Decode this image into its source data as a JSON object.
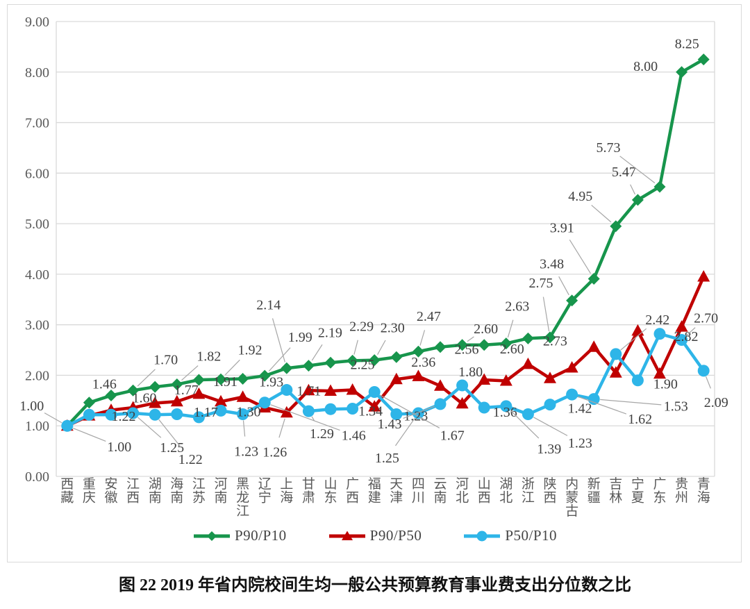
{
  "figure": {
    "caption": "图 22  2019 年省内院校间生均一般公共预算教育事业费支出分位数之比"
  },
  "chart_data": {
    "type": "line",
    "title": "",
    "xlabel": "",
    "ylabel": "",
    "ylim": [
      0,
      9
    ],
    "ytick_step": 1,
    "ytick_labels": [
      "0.00",
      "1.00",
      "2.00",
      "3.00",
      "4.00",
      "5.00",
      "6.00",
      "7.00",
      "8.00",
      "9.00"
    ],
    "grid": true,
    "legend_position": "bottom",
    "categories": [
      "西藏",
      "重庆",
      "安徽",
      "江西",
      "湖南",
      "海南",
      "江苏",
      "河南",
      "黑龙江",
      "辽宁",
      "上海",
      "甘肃",
      "山东",
      "广西",
      "福建",
      "天津",
      "四川",
      "云南",
      "河北",
      "山西",
      "湖北",
      "浙江",
      "陕西",
      "内蒙古",
      "新疆",
      "吉林",
      "宁夏",
      "广东",
      "贵州",
      "青海"
    ],
    "series": [
      {
        "name": "P90/P10",
        "color": "#17954C",
        "marker": "diamond",
        "values": [
          1.0,
          1.46,
          1.6,
          1.7,
          1.77,
          1.82,
          1.91,
          1.92,
          1.93,
          1.99,
          2.14,
          2.19,
          2.25,
          2.29,
          2.3,
          2.36,
          2.47,
          2.56,
          2.6,
          2.6,
          2.63,
          2.73,
          2.75,
          3.48,
          3.91,
          4.95,
          5.47,
          5.73,
          8.0,
          8.25
        ],
        "label_offsets": {
          "0": [
            -51,
            -29,
            1
          ],
          "1": [
            22,
            -27,
            0
          ],
          "2": [
            48,
            3,
            0
          ],
          "3": [
            47,
            -45,
            1
          ],
          "4": [
            45,
            4,
            0
          ],
          "5": [
            46,
            -41,
            1
          ],
          "6": [
            38,
            2,
            0
          ],
          "7": [
            42,
            -43,
            1
          ],
          "8": [
            41,
            4,
            0
          ],
          "9": [
            51,
            -56,
            1
          ],
          "10": [
            -26,
            -92,
            1
          ],
          "11": [
            31,
            -48,
            1
          ],
          "12": [
            46,
            2,
            0
          ],
          "13": [
            13,
            -50,
            1
          ],
          "14": [
            26,
            -47,
            1
          ],
          "15": [
            39,
            7,
            0
          ],
          "16": [
            15,
            -51,
            1
          ],
          "17": [
            38,
            3,
            0
          ],
          "18": [
            34,
            -24,
            1
          ],
          "19": [
            40,
            5,
            0
          ],
          "20": [
            16,
            -54,
            1
          ],
          "21": [
            39,
            3,
            0
          ],
          "22": [
            -13,
            -79,
            1
          ],
          "23": [
            -29,
            -53,
            1
          ],
          "24": [
            -46,
            -74,
            1
          ],
          "25": [
            -51,
            -44,
            1
          ],
          "26": [
            -20,
            -41,
            1
          ],
          "27": [
            -74,
            -57,
            1
          ],
          "28": [
            -52,
            -9,
            0
          ],
          "29": [
            -24,
            -23,
            0
          ]
        }
      },
      {
        "name": "P90/P50",
        "color": "#C00000",
        "marker": "triangle",
        "values": [
          1.0,
          1.2,
          1.31,
          1.36,
          1.45,
          1.48,
          1.63,
          1.48,
          1.57,
          1.36,
          1.26,
          1.7,
          1.69,
          1.71,
          1.38,
          1.92,
          1.98,
          1.79,
          1.44,
          1.91,
          1.89,
          2.22,
          1.94,
          2.15,
          2.56,
          2.05,
          2.88,
          2.03,
          2.96,
          3.95
        ],
        "label_offsets": {
          "10": [
            -17,
            56,
            1
          ]
        }
      },
      {
        "name": "P50/P10",
        "color": "#2EB5E8",
        "marker": "circle",
        "values": [
          1.0,
          1.22,
          1.22,
          1.25,
          1.22,
          1.23,
          1.17,
          1.3,
          1.23,
          1.46,
          1.71,
          1.29,
          1.33,
          1.34,
          1.67,
          1.23,
          1.25,
          1.43,
          1.8,
          1.36,
          1.39,
          1.23,
          1.42,
          1.62,
          1.53,
          2.42,
          1.9,
          2.82,
          2.7,
          2.09
        ],
        "label_offsets": {
          "0": [
            75,
            30,
            1
          ],
          "2": [
            18,
            2,
            0
          ],
          "3": [
            56,
            49,
            1
          ],
          "4": [
            51,
            64,
            1
          ],
          "6": [
            10,
            -8,
            0
          ],
          "7": [
            40,
            1,
            0
          ],
          "8": [
            5,
            53,
            1
          ],
          "9": [
            128,
            47,
            1
          ],
          "10": [
            32,
            1,
            0
          ],
          "11": [
            19,
            32,
            1
          ],
          "13": [
            26,
            3,
            0
          ],
          "14": [
            112,
            62,
            1
          ],
          "15": [
            28,
            2,
            0
          ],
          "16": [
            -45,
            64,
            1
          ],
          "17": [
            -73,
            28,
            1
          ],
          "18": [
            12,
            -20,
            0
          ],
          "19": [
            30,
            6,
            0
          ],
          "20": [
            62,
            61,
            1
          ],
          "21": [
            75,
            41,
            1
          ],
          "22": [
            43,
            5,
            0
          ],
          "23": [
            98,
            35,
            1
          ],
          "24": [
            118,
            10,
            1
          ],
          "25": [
            60,
            -50,
            1
          ],
          "26": [
            40,
            5,
            0
          ],
          "27": [
            38,
            3,
            0
          ],
          "28": [
            35,
            -32,
            1
          ],
          "29": [
            18,
            45,
            1
          ]
        }
      }
    ]
  }
}
